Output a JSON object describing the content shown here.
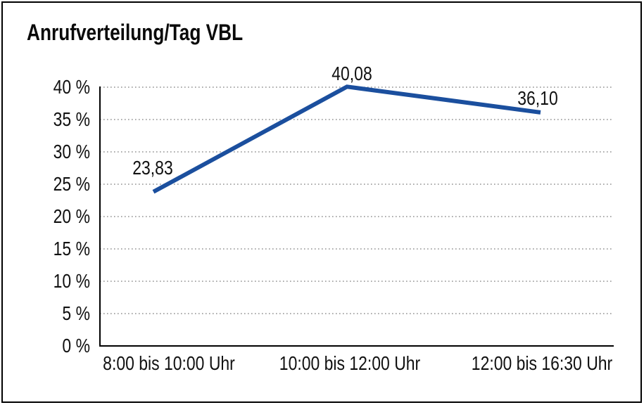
{
  "chart_data": {
    "type": "line",
    "title": "Anrufverteilung/Tag VBL",
    "categories": [
      "8:00 bis 10:00 Uhr",
      "10:00 bis 12:00 Uhr",
      "12:00 bis 16:30 Uhr"
    ],
    "values": [
      23.83,
      40.08,
      36.1
    ],
    "point_labels": [
      "23,83",
      "40,08",
      "36,10"
    ],
    "yticks": [
      0,
      5,
      10,
      15,
      20,
      25,
      30,
      35,
      40
    ],
    "ytick_labels": [
      "0 %",
      "5 %",
      "10 %",
      "15 %",
      "20 %",
      "25 %",
      "30 %",
      "35 %",
      "40 %"
    ],
    "ylim": [
      0,
      40
    ],
    "xlabel": "",
    "ylabel": "",
    "legend": "none",
    "grid": "horizontal-dotted",
    "line_color": "#1b4f9e",
    "axis_color": "#000000",
    "text_color": "#111111",
    "background_color": "#ffffff"
  }
}
